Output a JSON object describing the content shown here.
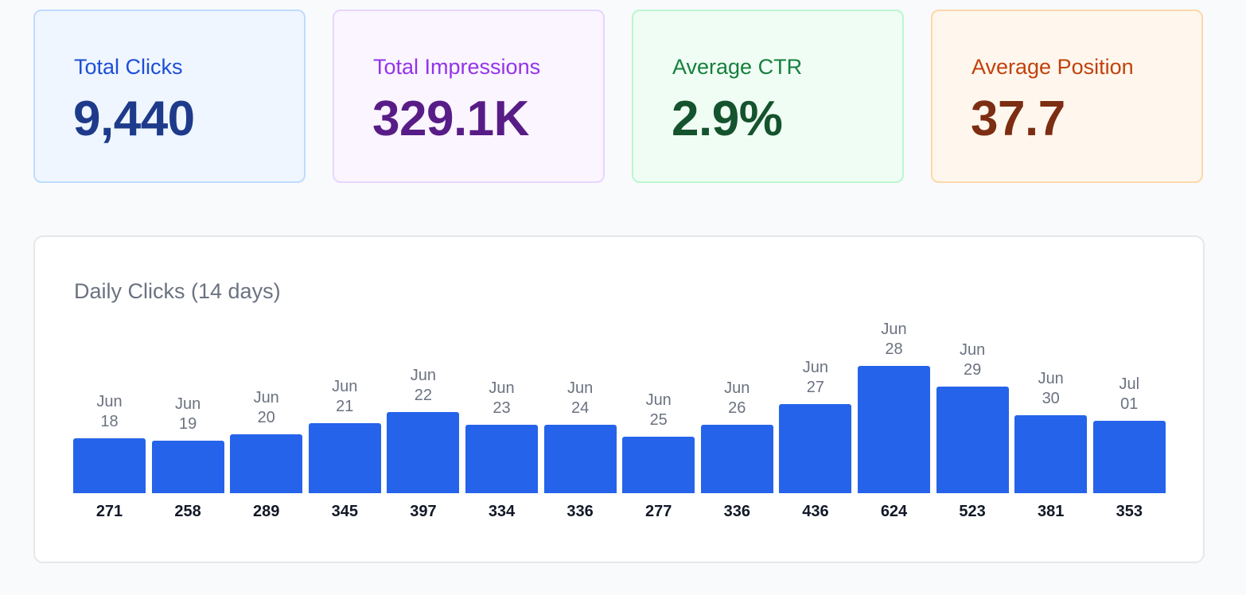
{
  "metrics": {
    "clicks": {
      "label": "Total Clicks",
      "value": "9,440"
    },
    "impressions": {
      "label": "Total Impressions",
      "value": "329.1K"
    },
    "ctr": {
      "label": "Average CTR",
      "value": "2.9%"
    },
    "position": {
      "label": "Average Position",
      "value": "37.7"
    }
  },
  "colors": {
    "bar": "#2563eb",
    "clicks_accent": "#1d4ed8",
    "impressions_accent": "#9333ea",
    "ctr_accent": "#15803d",
    "position_accent": "#c2410c"
  },
  "chart_data": {
    "type": "bar",
    "title": "Daily Clicks (14 days)",
    "categories": [
      [
        "Jun",
        "18"
      ],
      [
        "Jun",
        "19"
      ],
      [
        "Jun",
        "20"
      ],
      [
        "Jun",
        "21"
      ],
      [
        "Jun",
        "22"
      ],
      [
        "Jun",
        "23"
      ],
      [
        "Jun",
        "24"
      ],
      [
        "Jun",
        "25"
      ],
      [
        "Jun",
        "26"
      ],
      [
        "Jun",
        "27"
      ],
      [
        "Jun",
        "28"
      ],
      [
        "Jun",
        "29"
      ],
      [
        "Jun",
        "30"
      ],
      [
        "Jul",
        "01"
      ]
    ],
    "values": [
      271,
      258,
      289,
      345,
      397,
      334,
      336,
      277,
      336,
      436,
      624,
      523,
      381,
      353
    ],
    "grid": false,
    "legend": false
  }
}
